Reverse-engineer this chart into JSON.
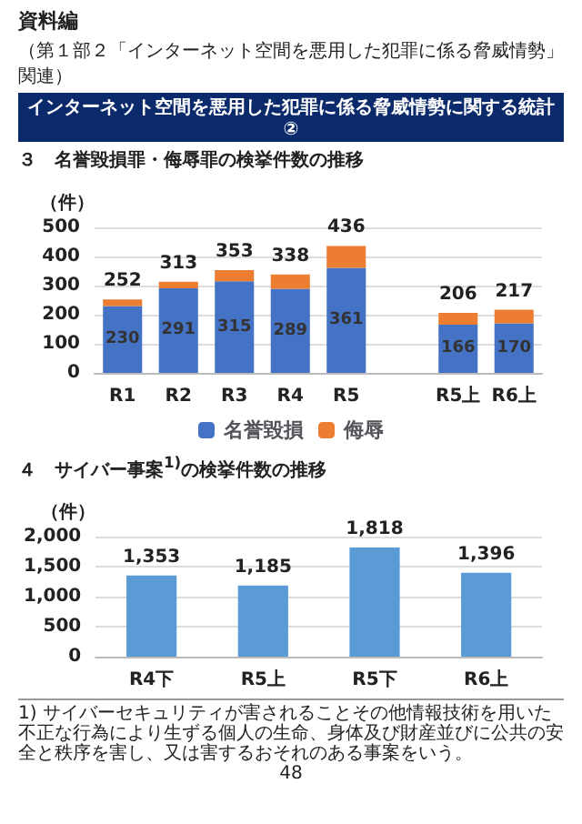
{
  "chart_data": [
    {
      "type": "bar",
      "title": "３　名誉毀損罪・侮辱罪の検挙件数の推移",
      "ylabel": "（件）",
      "annotations": [
        "資料編",
        "（第１部２「インターネット空間を悪用した犯罪に係る脅威情勢」関連）",
        "インターネット空間を悪用した犯罪に係る脅威情勢に関する統計②"
      ],
      "categories": [
        "R1",
        "R2",
        "R3",
        "R4",
        "R5",
        null,
        "R5上",
        "R6上"
      ],
      "stacked": true,
      "series": [
        {
          "name": "名誉毀損",
          "color": "#4472c4",
          "values": [
            230,
            291,
            315,
            289,
            361,
            null,
            166,
            170
          ],
          "value_labels": [
            "230",
            "291",
            "315",
            "289",
            "361",
            null,
            "166",
            "170"
          ]
        },
        {
          "name": "侮辱",
          "color": "#ed7d31",
          "values": [
            22,
            22,
            38,
            49,
            75,
            null,
            40,
            47
          ]
        }
      ],
      "totals": [
        "252",
        "313",
        "353",
        "338",
        "436",
        null,
        "206",
        "217"
      ],
      "ylim": [
        0,
        500
      ],
      "yticks": [
        0,
        100,
        200,
        300,
        400,
        500
      ],
      "grid": "y",
      "legend": "bottom"
    },
    {
      "type": "bar",
      "title": "４　サイバー事案$^{1)}$の検挙件数の推移",
      "ylabel": "（件）",
      "annotations": [
        "1) サイバーセキュリティが害されることその他情報技術を用いた不正な行為により生ずる個人の生命、身体及び財産並びに公共の安全と秩序を害し、又は害するおそれのある事案をいう。",
        "48"
      ],
      "categories": [
        "R4下",
        "R5上",
        "R5下",
        "R6上"
      ],
      "series": [
        {
          "color": "#5b9bd5",
          "values": [
            1353,
            1185,
            1818,
            1396
          ],
          "value_labels": [
            "1,353",
            "1,185",
            "1,818",
            "1,396"
          ]
        }
      ],
      "ylim": [
        0,
        2000
      ],
      "yticks": [
        0,
        {
          "value": 500,
          "label": "500"
        },
        {
          "value": 1000,
          "label": "1,000"
        },
        {
          "value": 1500,
          "label": "1,500"
        },
        {
          "value": 2000,
          "label": "2,000"
        }
      ],
      "grid": "y"
    }
  ]
}
